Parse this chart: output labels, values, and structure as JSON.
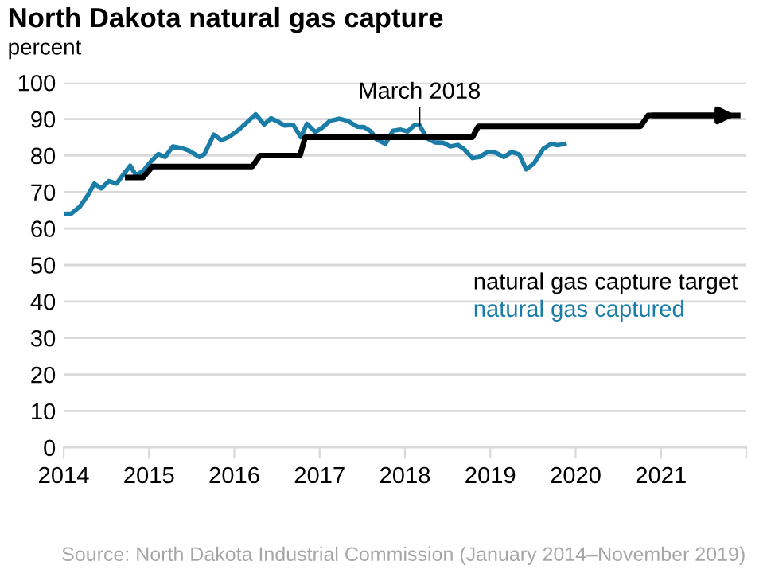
{
  "chart_data": {
    "type": "line",
    "title": "North Dakota natural gas capture",
    "ylabel": "percent",
    "xlim": [
      2014,
      2022
    ],
    "xticks": [
      2014,
      2015,
      2016,
      2017,
      2018,
      2019,
      2020,
      2021,
      {
        "value": 2022,
        "label": null
      }
    ],
    "ylim": [
      0,
      100
    ],
    "yticks": [
      0,
      10,
      20,
      30,
      40,
      50,
      60,
      70,
      80,
      90,
      100
    ],
    "grid": "y",
    "legend": "right",
    "line_style": "solid",
    "series": [
      {
        "name": "natural gas capture target",
        "color": "#000000",
        "x": [
          2014.75,
          2014.93,
          2015.04,
          2016.21,
          2016.3,
          2016.77,
          2016.83,
          2018.79,
          2018.86,
          2020.76,
          2020.85,
          2021.9
        ],
        "values": [
          74,
          74,
          77,
          77,
          80,
          80,
          85,
          85,
          88,
          88,
          91,
          91
        ]
      },
      {
        "name": "natural gas captured",
        "color": "#1a7da8",
        "x": [
          2014.0,
          2014.09,
          2014.19,
          2014.28,
          2014.36,
          2014.44,
          2014.53,
          2014.62,
          2014.7,
          2014.78,
          2014.85,
          2014.94,
          2015.02,
          2015.11,
          2015.19,
          2015.28,
          2015.39,
          2015.47,
          2015.59,
          2015.65,
          2015.76,
          2015.85,
          2015.93,
          2016.04,
          2016.13,
          2016.25,
          2016.35,
          2016.43,
          2016.51,
          2016.59,
          2016.69,
          2016.78,
          2016.85,
          2016.95,
          2017.04,
          2017.12,
          2017.23,
          2017.33,
          2017.44,
          2017.52,
          2017.6,
          2017.67,
          2017.77,
          2017.86,
          2017.95,
          2018.03,
          2018.11,
          2018.17,
          2018.26,
          2018.35,
          2018.45,
          2018.53,
          2018.62,
          2018.69,
          2018.79,
          2018.87,
          2018.97,
          2019.06,
          2019.16,
          2019.25,
          2019.34,
          2019.42,
          2019.51,
          2019.62,
          2019.71,
          2019.79,
          2019.87
        ],
        "values": [
          64,
          64.1,
          66,
          69,
          72.3,
          71,
          73,
          72.3,
          74.8,
          77.2,
          74.5,
          76,
          78.3,
          80.4,
          79.6,
          82.5,
          82,
          81.3,
          79.6,
          80.4,
          85.7,
          84.2,
          85,
          86.8,
          88.7,
          91.3,
          88.5,
          90.2,
          89.3,
          88.2,
          88.4,
          85,
          88.7,
          86.4,
          87.8,
          89.5,
          90.1,
          89.5,
          87.9,
          87.8,
          86.6,
          84.4,
          83.2,
          86.8,
          87.1,
          86.6,
          88.3,
          88.3,
          84.7,
          83.6,
          83.5,
          82.5,
          82.9,
          81.8,
          79.3,
          79.6,
          81,
          80.8,
          79.6,
          81,
          80.3,
          76.2,
          77.8,
          81.8,
          83.2,
          82.8,
          83.2
        ]
      }
    ],
    "annotations": [
      {
        "text": "March 2018",
        "x": 2018.17,
        "y": 88.3
      },
      "Source: North Dakota Industrial Commission (January 2014–November 2019)"
    ]
  }
}
